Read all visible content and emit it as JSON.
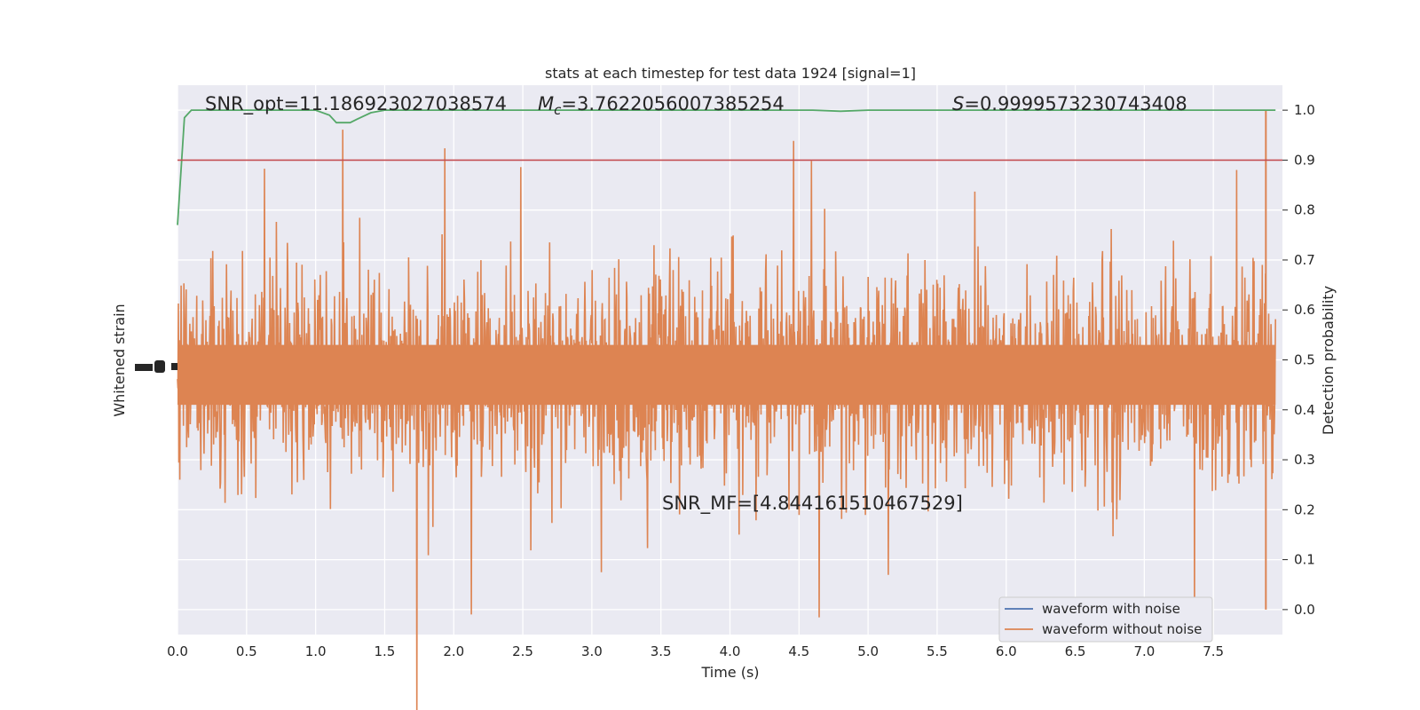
{
  "chart_data": {
    "type": "line",
    "title": "stats at each timestep for test data 1924 [signal=1]",
    "xlabel": "Time (s)",
    "ylabel_left": "Whitened strain",
    "ylabel_right": "Detection probability",
    "xlim": [
      0.0,
      8.0
    ],
    "ylim_right": [
      -0.05,
      1.05
    ],
    "x_ticks": [
      "0.0",
      "0.5",
      "1.0",
      "1.5",
      "2.0",
      "2.5",
      "3.0",
      "3.5",
      "4.0",
      "4.5",
      "5.0",
      "5.5",
      "6.0",
      "6.5",
      "7.0",
      "7.5"
    ],
    "y_ticks_right": [
      "0.0",
      "0.1",
      "0.2",
      "0.3",
      "0.4",
      "0.5",
      "0.6",
      "0.7",
      "0.8",
      "0.9",
      "1.0"
    ],
    "grid": true,
    "legend_position": "lower-right",
    "annotations": {
      "snr_opt": "SNR_opt=11.186923027038574",
      "mc_symbol": "M",
      "mc_sub": "c",
      "mc_value": "=3.7622056007385254",
      "s_symbol": "S",
      "s_value": "=0.9999573230743408",
      "snr_mf": "SNR_MF=[4.844161510467529]"
    },
    "threshold": 0.9,
    "series": [
      {
        "name": "waveform with noise",
        "color": "#4c72b0",
        "style": "noise",
        "amplitude": 0.14
      },
      {
        "name": "waveform without noise",
        "color": "#dd8452",
        "style": "noise",
        "amplitude": 0.1
      },
      {
        "name": "",
        "color": "#55a868",
        "axis": "right",
        "x": [
          0.0,
          0.05,
          0.1,
          0.2,
          0.5,
          0.8,
          1.0,
          1.1,
          1.15,
          1.2,
          1.25,
          1.3,
          1.4,
          1.5,
          2.0,
          3.0,
          4.0,
          4.6,
          4.8,
          5.0,
          5.5,
          6.0,
          7.0,
          7.85,
          7.95
        ],
        "values": [
          0.77,
          0.985,
          1.0,
          1.0,
          1.0,
          1.0,
          1.0,
          0.99,
          0.975,
          0.975,
          0.975,
          0.982,
          0.995,
          1.0,
          1.0,
          1.0,
          1.0,
          1.0,
          0.998,
          1.0,
          1.0,
          1.0,
          1.0,
          1.0,
          1.0
        ]
      },
      {
        "name": "",
        "color": "#c44e52",
        "axis": "right",
        "x": [
          0.0,
          8.0
        ],
        "values": [
          0.9,
          0.9
        ]
      }
    ],
    "colors": {
      "background": "#eaeaf2",
      "grid": "#ffffff"
    }
  }
}
